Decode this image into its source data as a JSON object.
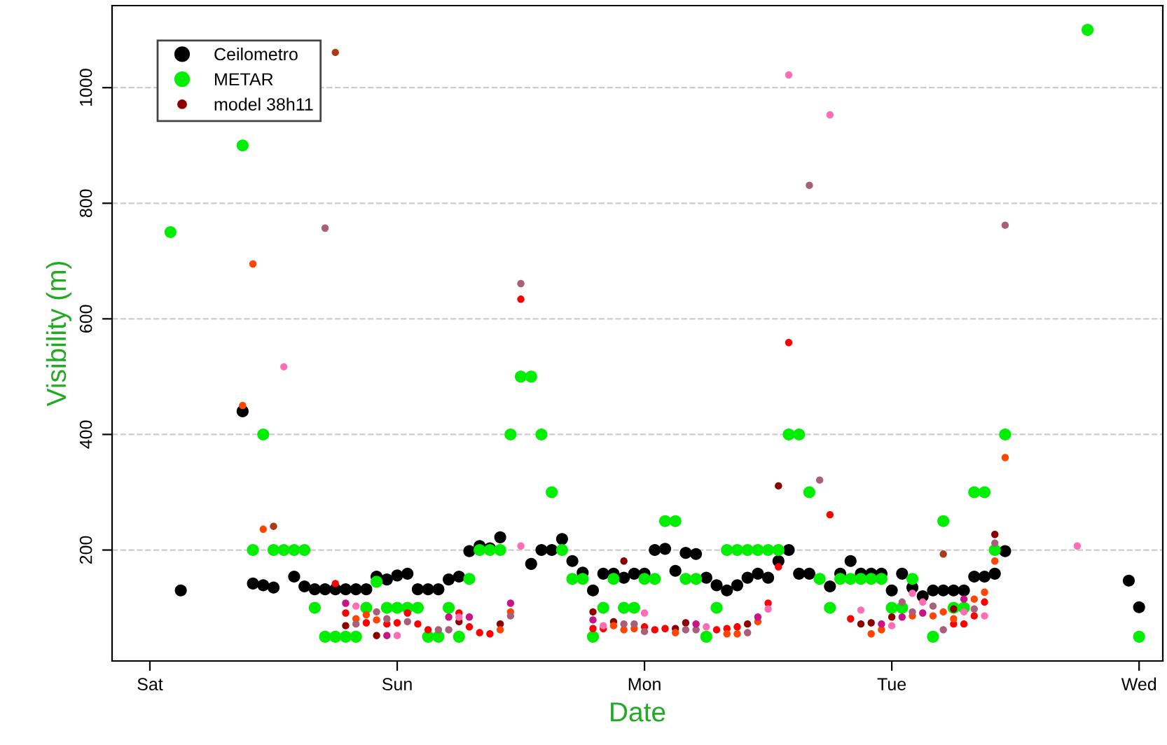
{
  "chart_data": {
    "type": "scatter",
    "xlabel": "Date",
    "ylabel": "Visibility (m)",
    "categories": [
      null,
      null,
      null,
      "Sat",
      null,
      null,
      null,
      null,
      null,
      null,
      null,
      null,
      null,
      null,
      null,
      null,
      null,
      null,
      null,
      null,
      null,
      null,
      null,
      null,
      null,
      null,
      null,
      "Sun",
      null,
      null,
      null,
      null,
      null,
      null,
      null,
      null,
      null,
      null,
      null,
      null,
      null,
      null,
      null,
      null,
      null,
      null,
      null,
      null,
      null,
      null,
      null,
      "Mon",
      null,
      null,
      null,
      null,
      null,
      null,
      null,
      null,
      null,
      null,
      null,
      null,
      null,
      null,
      null,
      null,
      null,
      null,
      null,
      null,
      null,
      null,
      null,
      "Tue",
      null,
      null,
      null,
      null,
      null,
      null,
      null,
      null,
      null,
      null,
      null,
      null,
      null,
      null,
      null,
      null,
      null,
      null,
      null,
      null,
      null,
      null,
      null,
      "Wed",
      null,
      null
    ],
    "ylim": [
      8,
      1142
    ],
    "yticks": [
      200,
      400,
      600,
      800,
      1000
    ],
    "grid": "y",
    "legend": "top left",
    "marker": "circle",
    "series": [
      {
        "name": "Ceilometro",
        "color": "#000000",
        "values": [
          null,
          null,
          null,
          null,
          null,
          null,
          130,
          null,
          null,
          null,
          null,
          null,
          440,
          142,
          139,
          135,
          null,
          154,
          137,
          132,
          132,
          132,
          132,
          132,
          132,
          154,
          149,
          156,
          159,
          132,
          132,
          132,
          149,
          154,
          198,
          207,
          203,
          222,
          null,
          null,
          176,
          200,
          200,
          219,
          181,
          161,
          130,
          159,
          159,
          152,
          159,
          159,
          200,
          202,
          164,
          195,
          193,
          152,
          139,
          130,
          139,
          152,
          159,
          152,
          181,
          200,
          159,
          159,
          null,
          137,
          159,
          181,
          159,
          159,
          159,
          130,
          159,
          135,
          120,
          130,
          130,
          130,
          130,
          154,
          154,
          159,
          198,
          null,
          null,
          null,
          null,
          null,
          null,
          null,
          null,
          null,
          null,
          null,
          147,
          101,
          null,
          null
        ]
      },
      {
        "name": "METAR",
        "color": "#00ee00",
        "values": [
          null,
          null,
          null,
          null,
          null,
          750,
          null,
          null,
          null,
          null,
          null,
          null,
          900,
          200,
          400,
          200,
          200,
          200,
          200,
          100,
          50,
          50,
          50,
          50,
          100,
          145,
          100,
          100,
          100,
          100,
          50,
          50,
          100,
          50,
          150,
          200,
          200,
          200,
          400,
          500,
          500,
          400,
          300,
          200,
          150,
          150,
          50,
          100,
          150,
          100,
          100,
          150,
          150,
          250,
          250,
          150,
          150,
          50,
          100,
          200,
          200,
          200,
          200,
          200,
          200,
          400,
          400,
          300,
          150,
          100,
          150,
          150,
          150,
          150,
          150,
          100,
          100,
          150,
          null,
          50,
          250,
          100,
          100,
          300,
          300,
          200,
          400,
          null,
          null,
          null,
          null,
          null,
          null,
          null,
          1100,
          null,
          null,
          null,
          null,
          50,
          null,
          null
        ]
      },
      {
        "name": "model 38h11",
        "color": "#8b0000",
        "values": [
          null,
          null,
          null,
          null,
          null,
          null,
          null,
          null,
          null,
          null,
          null,
          null,
          null,
          null,
          null,
          null,
          null,
          null,
          null,
          null,
          null,
          null,
          69,
          null,
          null,
          52,
          null,
          null,
          null,
          null,
          null,
          null,
          null,
          76,
          null,
          null,
          null,
          72,
          null,
          null,
          null,
          null,
          null,
          null,
          null,
          null,
          93,
          null,
          76,
          181,
          null,
          null,
          null,
          null,
          64,
          74,
          null,
          null,
          null,
          null,
          null,
          72,
          null,
          null,
          311,
          null,
          null,
          null,
          null,
          null,
          null,
          null,
          72,
          74,
          null,
          84,
          null,
          null,
          null,
          null,
          null,
          98,
          null,
          null,
          null,
          227,
          null,
          null,
          null,
          null,
          null,
          null,
          null,
          null,
          null,
          null,
          null,
          null,
          null,
          null,
          null,
          null
        ]
      },
      {
        "color": "#ff0000",
        "values": [
          null,
          null,
          null,
          null,
          null,
          null,
          null,
          null,
          null,
          null,
          null,
          null,
          null,
          null,
          null,
          null,
          null,
          null,
          null,
          null,
          null,
          142,
          91,
          null,
          74,
          null,
          72,
          74,
          91,
          72,
          62,
          null,
          null,
          91,
          67,
          57,
          55,
          null,
          null,
          634,
          null,
          null,
          null,
          null,
          null,
          null,
          64,
          64,
          null,
          null,
          null,
          67,
          62,
          64,
          null,
          null,
          null,
          null,
          62,
          64,
          67,
          null,
          null,
          108,
          171,
          559,
          null,
          null,
          null,
          261,
          null,
          81,
          null,
          null,
          null,
          null,
          null,
          null,
          null,
          null,
          null,
          72,
          72,
          86,
          110,
          null,
          null,
          null,
          null,
          null,
          null,
          null,
          null,
          null,
          null,
          null,
          null,
          null,
          null,
          null,
          null,
          null
        ]
      },
      {
        "color": "#ff4500",
        "values": [
          null,
          null,
          null,
          null,
          null,
          null,
          null,
          null,
          null,
          null,
          null,
          null,
          450,
          695,
          236,
          null,
          null,
          null,
          null,
          null,
          null,
          null,
          null,
          81,
          88,
          79,
          null,
          null,
          null,
          null,
          null,
          null,
          null,
          null,
          null,
          null,
          null,
          62,
          93,
          null,
          null,
          null,
          null,
          null,
          null,
          null,
          null,
          null,
          69,
          62,
          64,
          null,
          null,
          null,
          57,
          null,
          null,
          null,
          null,
          55,
          55,
          null,
          76,
          null,
          null,
          null,
          null,
          null,
          null,
          null,
          null,
          null,
          null,
          55,
          62,
          null,
          null,
          86,
          null,
          86,
          93,
          81,
          null,
          115,
          127,
          181,
          360,
          null,
          null,
          null,
          null,
          null,
          null,
          null,
          null,
          null,
          null,
          null,
          null,
          null,
          null,
          null
        ]
      },
      {
        "color": "#ff6eb4",
        "values": [
          null,
          null,
          null,
          null,
          null,
          null,
          null,
          null,
          null,
          null,
          null,
          null,
          null,
          null,
          null,
          null,
          517,
          null,
          null,
          null,
          null,
          null,
          null,
          103,
          null,
          null,
          null,
          52,
          null,
          null,
          null,
          null,
          null,
          84,
          null,
          null,
          null,
          null,
          null,
          207,
          null,
          null,
          null,
          null,
          null,
          null,
          null,
          69,
          null,
          null,
          null,
          91,
          null,
          null,
          null,
          null,
          null,
          67,
          null,
          null,
          null,
          null,
          null,
          98,
          null,
          1022,
          null,
          null,
          null,
          953,
          null,
          null,
          96,
          null,
          null,
          69,
          null,
          125,
          110,
          null,
          null,
          null,
          93,
          null,
          86,
          null,
          null,
          null,
          null,
          null,
          null,
          null,
          null,
          207,
          null,
          null,
          null,
          null,
          null,
          null,
          null,
          null
        ]
      },
      {
        "color": "#a8607a",
        "values": [
          null,
          null,
          null,
          null,
          null,
          null,
          null,
          null,
          null,
          null,
          null,
          null,
          null,
          null,
          null,
          null,
          null,
          null,
          null,
          null,
          757,
          null,
          null,
          72,
          null,
          93,
          81,
          null,
          76,
          null,
          null,
          62,
          62,
          null,
          null,
          null,
          null,
          null,
          86,
          661,
          null,
          null,
          null,
          null,
          null,
          null,
          null,
          null,
          null,
          72,
          72,
          59,
          null,
          null,
          null,
          62,
          62,
          null,
          null,
          null,
          null,
          57,
          null,
          null,
          null,
          null,
          null,
          831,
          321,
          null,
          null,
          null,
          null,
          null,
          null,
          null,
          110,
          93,
          null,
          103,
          62,
          null,
          null,
          98,
          null,
          212,
          762,
          null,
          null,
          null,
          null,
          null,
          null,
          null,
          null,
          null,
          null,
          null,
          null,
          null,
          null,
          null
        ]
      },
      {
        "color": "#c71585",
        "values": [
          null,
          null,
          null,
          null,
          null,
          null,
          null,
          null,
          null,
          null,
          null,
          null,
          null,
          null,
          null,
          null,
          null,
          null,
          null,
          null,
          null,
          null,
          108,
          null,
          null,
          null,
          52,
          null,
          null,
          null,
          null,
          null,
          84,
          null,
          84,
          null,
          null,
          null,
          108,
          null,
          null,
          null,
          null,
          null,
          null,
          null,
          79,
          null,
          null,
          null,
          null,
          null,
          null,
          null,
          null,
          null,
          72,
          null,
          null,
          null,
          null,
          null,
          84,
          null,
          null,
          null,
          null,
          null,
          null,
          null,
          null,
          null,
          null,
          null,
          72,
          null,
          84,
          null,
          91,
          null,
          null,
          null,
          115,
          null,
          null,
          null,
          null,
          null,
          null,
          null,
          null,
          null,
          null,
          null,
          null,
          null,
          null,
          null,
          null,
          null,
          null,
          null
        ]
      },
      {
        "color": "#a93a1a",
        "values": [
          null,
          null,
          null,
          null,
          null,
          null,
          null,
          null,
          null,
          null,
          null,
          null,
          null,
          null,
          null,
          241,
          null,
          null,
          null,
          null,
          null,
          1061,
          null,
          null,
          null,
          null,
          null,
          null,
          null,
          null,
          null,
          null,
          null,
          null,
          null,
          null,
          null,
          null,
          null,
          null,
          null,
          null,
          null,
          null,
          null,
          null,
          null,
          null,
          null,
          null,
          null,
          null,
          null,
          null,
          null,
          null,
          null,
          null,
          null,
          null,
          null,
          null,
          null,
          null,
          null,
          null,
          null,
          null,
          null,
          null,
          null,
          null,
          null,
          null,
          null,
          null,
          null,
          null,
          null,
          null,
          193,
          null,
          null,
          null,
          null,
          null,
          null,
          null,
          null,
          null,
          null,
          null,
          null,
          null,
          null,
          null,
          null,
          null,
          null,
          null,
          null,
          null
        ]
      }
    ]
  }
}
